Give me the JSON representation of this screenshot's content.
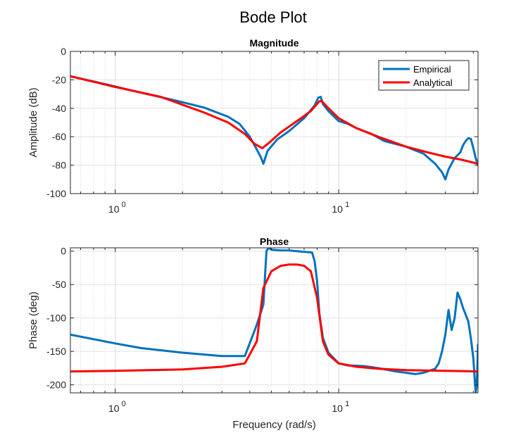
{
  "figure_title": "Bode Plot",
  "chart_data": [
    {
      "type": "line",
      "title": "Magnitude",
      "xlabel": "",
      "ylabel": "Amplitude (dB)",
      "xscale": "log",
      "xlim": [
        0.63,
        42
      ],
      "ylim": [
        -100,
        0
      ],
      "yticks": [
        0,
        -20,
        -40,
        -60,
        -80,
        -100
      ],
      "xtick_labels": [
        {
          "base": "10",
          "exp": "0",
          "value": 1
        },
        {
          "base": "10",
          "exp": "1",
          "value": 10
        }
      ],
      "grid": true,
      "legend": {
        "placement": "top-right",
        "entries": [
          "Empirical",
          "Analytical"
        ]
      },
      "series": [
        {
          "name": "Empirical",
          "color": "#0072BD",
          "points": [
            [
              0.63,
              -17.5
            ],
            [
              0.9,
              -23
            ],
            [
              1.3,
              -29
            ],
            [
              1.8,
              -34
            ],
            [
              2.5,
              -39.5
            ],
            [
              3.2,
              -46
            ],
            [
              3.6,
              -51
            ],
            [
              4.0,
              -60
            ],
            [
              4.3,
              -69
            ],
            [
              4.5,
              -75
            ],
            [
              4.6,
              -79
            ],
            [
              4.8,
              -70
            ],
            [
              5.3,
              -62
            ],
            [
              6.0,
              -56
            ],
            [
              7.0,
              -47
            ],
            [
              7.8,
              -38
            ],
            [
              8.1,
              -32.5
            ],
            [
              8.3,
              -32
            ],
            [
              8.5,
              -37
            ],
            [
              9.0,
              -42
            ],
            [
              10,
              -49
            ],
            [
              11,
              -51
            ],
            [
              12,
              -54
            ],
            [
              14,
              -58
            ],
            [
              16,
              -63
            ],
            [
              20,
              -67
            ],
            [
              24,
              -72
            ],
            [
              27,
              -79
            ],
            [
              29,
              -85
            ],
            [
              30,
              -90
            ],
            [
              31,
              -83
            ],
            [
              33,
              -75
            ],
            [
              35,
              -71
            ],
            [
              36,
              -66
            ],
            [
              37,
              -63
            ],
            [
              38,
              -61
            ],
            [
              39,
              -61.5
            ],
            [
              40,
              -68
            ],
            [
              41,
              -75
            ],
            [
              42,
              -80
            ]
          ]
        },
        {
          "name": "Analytical",
          "color": "#FF0000",
          "points": [
            [
              0.63,
              -17.5
            ],
            [
              1.0,
              -25
            ],
            [
              1.6,
              -32
            ],
            [
              2.5,
              -43
            ],
            [
              3.2,
              -50
            ],
            [
              3.8,
              -58
            ],
            [
              4.2,
              -65
            ],
            [
              4.55,
              -68
            ],
            [
              4.9,
              -64
            ],
            [
              5.5,
              -57
            ],
            [
              6.5,
              -49
            ],
            [
              7.5,
              -42
            ],
            [
              8.2,
              -35
            ],
            [
              8.4,
              -35
            ],
            [
              9.0,
              -40
            ],
            [
              10,
              -47
            ],
            [
              12,
              -54
            ],
            [
              15,
              -60
            ],
            [
              20,
              -67
            ],
            [
              25,
              -71
            ],
            [
              30,
              -74
            ],
            [
              35,
              -76
            ],
            [
              42,
              -79
            ]
          ]
        }
      ]
    },
    {
      "type": "line",
      "title": "Phase",
      "xlabel": "Frequency (rad/s)",
      "ylabel": "Phase (deg)",
      "xscale": "log",
      "xlim": [
        0.63,
        42
      ],
      "ylim": [
        -212,
        5
      ],
      "yticks": [
        0,
        -50,
        -100,
        -150,
        -200
      ],
      "xtick_labels": [
        {
          "base": "10",
          "exp": "0",
          "value": 1
        },
        {
          "base": "10",
          "exp": "1",
          "value": 10
        }
      ],
      "grid": true,
      "series": [
        {
          "name": "Empirical",
          "color": "#0072BD",
          "points": [
            [
              0.63,
              -125
            ],
            [
              1.0,
              -138
            ],
            [
              1.3,
              -145
            ],
            [
              2.0,
              -152
            ],
            [
              3.0,
              -157
            ],
            [
              3.8,
              -157
            ],
            [
              4.3,
              -110
            ],
            [
              4.6,
              -80
            ],
            [
              4.75,
              0
            ],
            [
              4.85,
              5
            ],
            [
              5.0,
              2
            ],
            [
              5.5,
              1
            ],
            [
              6.0,
              1
            ],
            [
              7.0,
              -1
            ],
            [
              7.6,
              -2
            ],
            [
              7.8,
              -15
            ],
            [
              8.0,
              -45
            ],
            [
              8.2,
              -95
            ],
            [
              8.5,
              -130
            ],
            [
              9.0,
              -152
            ],
            [
              10,
              -168
            ],
            [
              11,
              -171
            ],
            [
              13,
              -172
            ],
            [
              15,
              -175
            ],
            [
              18,
              -180
            ],
            [
              20,
              -182
            ],
            [
              22,
              -184
            ],
            [
              24,
              -182
            ],
            [
              27,
              -176
            ],
            [
              28,
              -168
            ],
            [
              29,
              -150
            ],
            [
              30,
              -125
            ],
            [
              31,
              -88
            ],
            [
              32,
              -118
            ],
            [
              33,
              -100
            ],
            [
              34,
              -62
            ],
            [
              35,
              -72
            ],
            [
              36,
              -85
            ],
            [
              37,
              -95
            ],
            [
              38,
              -105
            ],
            [
              39,
              -130
            ],
            [
              40,
              -160
            ],
            [
              41,
              -212
            ],
            [
              41.5,
              -200
            ],
            [
              42,
              -140
            ]
          ]
        },
        {
          "name": "Analytical",
          "color": "#FF0000",
          "points": [
            [
              0.63,
              -180
            ],
            [
              1.0,
              -179
            ],
            [
              2.0,
              -177
            ],
            [
              3.0,
              -173
            ],
            [
              3.8,
              -168
            ],
            [
              4.3,
              -135
            ],
            [
              4.6,
              -55
            ],
            [
              5.0,
              -30
            ],
            [
              5.5,
              -22
            ],
            [
              6.0,
              -20
            ],
            [
              6.5,
              -20
            ],
            [
              7.0,
              -22
            ],
            [
              7.5,
              -30
            ],
            [
              8.0,
              -70
            ],
            [
              8.5,
              -135
            ],
            [
              9.0,
              -155
            ],
            [
              10,
              -168
            ],
            [
              12,
              -173
            ],
            [
              15,
              -176
            ],
            [
              20,
              -178
            ],
            [
              30,
              -179
            ],
            [
              42,
              -180
            ]
          ]
        }
      ]
    }
  ]
}
